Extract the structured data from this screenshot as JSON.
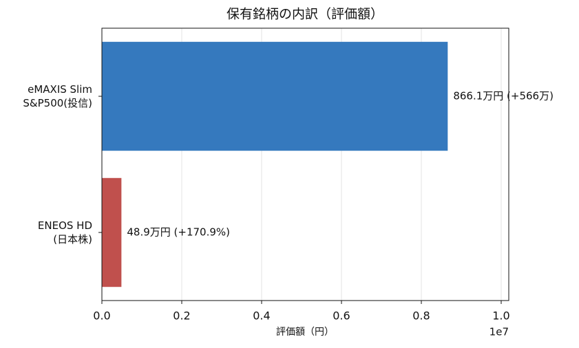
{
  "chart_data": {
    "type": "barh",
    "title": "保有銘柄の内訳（評価額）",
    "x_label": "評価額（円）",
    "x_offset_label": "1e7",
    "categories": [
      "eMAXIS Slim\nS&P500(投信)",
      "ENEOS HD\n(日本株)"
    ],
    "values": [
      8661000,
      489000
    ],
    "value_labels": [
      "866.1万円 (+566万)",
      "48.9万円 (+170.9%)"
    ],
    "colors": [
      "#3579be",
      "#c0504d"
    ],
    "xlim": [
      0,
      10190000
    ],
    "xticks": [
      {
        "value": 0,
        "label": "0.0"
      },
      {
        "value": 2000000,
        "label": "0.2"
      },
      {
        "value": 4000000,
        "label": "0.4"
      },
      {
        "value": 6000000,
        "label": "0.6"
      },
      {
        "value": 8000000,
        "label": "0.8"
      },
      {
        "value": 10000000,
        "label": "1.0"
      }
    ],
    "grid": true
  }
}
